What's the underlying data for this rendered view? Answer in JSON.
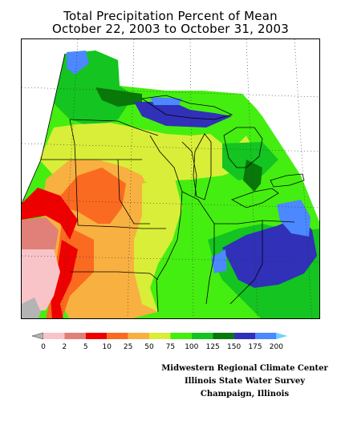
{
  "title_line1": "Total Precipitation Percent of Mean",
  "title_line2": "October 22, 2003 to October 31, 2003",
  "legend": {
    "labels": [
      "0",
      "2",
      "5",
      "10",
      "25",
      "50",
      "75",
      "100",
      "125",
      "150",
      "175",
      "200"
    ],
    "colors": [
      "#b4b4b4",
      "#f8c4c8",
      "#e08078",
      "#ee0000",
      "#fa6a20",
      "#f8b040",
      "#d8ee38",
      "#44ee10",
      "#14c420",
      "#087808",
      "#3030b8",
      "#4c88ff",
      "#72d0ff"
    ]
  },
  "credits": {
    "line1": "Midwestern Regional Climate Center",
    "line2": "Illinois State Water Survey",
    "line3": "Champaign, Illinois"
  }
}
